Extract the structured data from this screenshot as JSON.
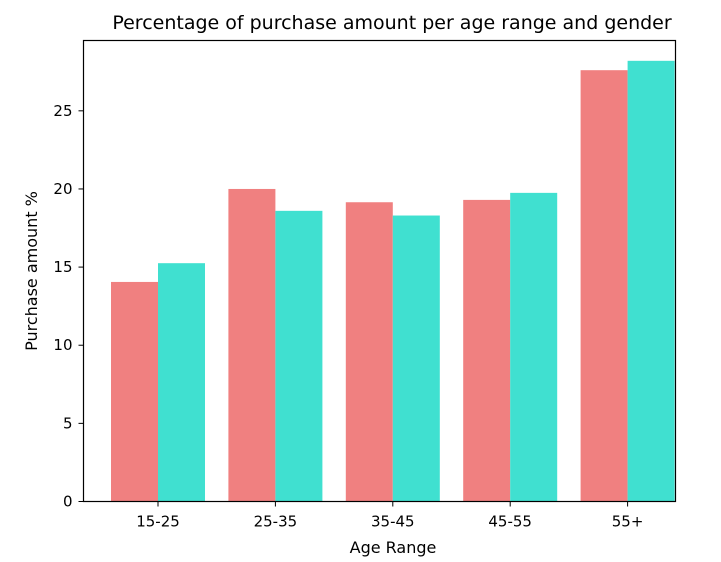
{
  "chart_data": {
    "type": "bar",
    "title": "Percentage of purchase amount per age range and gender",
    "xlabel": "Age Range",
    "ylabel": "Purchase amount %",
    "categories": [
      "15-25",
      "25-35",
      "35-45",
      "45-55",
      "55+"
    ],
    "series": [
      {
        "values": [
          14.05,
          20.0,
          19.15,
          19.3,
          27.6
        ],
        "color": "#f08080"
      },
      {
        "values": [
          15.25,
          18.6,
          18.3,
          19.75,
          28.2
        ],
        "color": "#40e0d0"
      }
    ],
    "ylim": [
      0,
      29.5
    ],
    "yticks": [
      0,
      5,
      10,
      15,
      20,
      25
    ],
    "grid": false,
    "legend": "none"
  }
}
